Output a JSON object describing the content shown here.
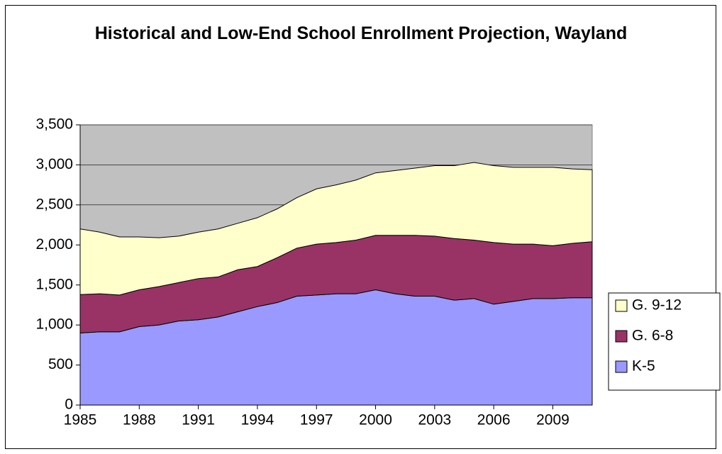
{
  "chart_data": {
    "type": "stacked_area",
    "title": "Historical and Low-End School Enrollment Projection, Wayland",
    "x": [
      1985,
      1986,
      1987,
      1988,
      1989,
      1990,
      1991,
      1992,
      1993,
      1994,
      1995,
      1996,
      1997,
      1998,
      1999,
      2000,
      2001,
      2002,
      2003,
      2004,
      2005,
      2006,
      2007,
      2008,
      2009,
      2010,
      2011
    ],
    "xlim": [
      1985,
      2011
    ],
    "xticks": [
      1985,
      1988,
      1991,
      1994,
      1997,
      2000,
      2003,
      2006,
      2009
    ],
    "ylim": [
      0,
      3500
    ],
    "yticks": [
      0,
      500,
      {
        "value": 1000,
        "label": "1,000"
      },
      {
        "value": 1500,
        "label": "1,500"
      },
      {
        "value": 2000,
        "label": "2,000"
      },
      {
        "value": 2500,
        "label": "2,500"
      },
      {
        "value": 3000,
        "label": "3,000"
      },
      {
        "value": 3500,
        "label": "3,500"
      }
    ],
    "grid": true,
    "legend": "right",
    "series": [
      {
        "name": "K-5",
        "color": "#9999ff",
        "values": [
          900,
          915,
          915,
          980,
          1000,
          1050,
          1065,
          1100,
          1165,
          1230,
          1280,
          1360,
          1375,
          1390,
          1390,
          1440,
          1390,
          1360,
          1360,
          1310,
          1330,
          1260,
          1295,
          1330,
          1330,
          1340,
          1340
        ]
      },
      {
        "name": "G. 6-8",
        "color": "#993366",
        "values": [
          480,
          475,
          460,
          460,
          480,
          480,
          515,
          500,
          525,
          500,
          560,
          600,
          635,
          640,
          670,
          680,
          730,
          760,
          750,
          770,
          730,
          770,
          715,
          680,
          660,
          680,
          700
        ]
      },
      {
        "name": "G. 9-12",
        "color": "#ffffcc",
        "values": [
          820,
          770,
          725,
          660,
          610,
          580,
          580,
          600,
          580,
          610,
          610,
          630,
          690,
          720,
          750,
          780,
          810,
          840,
          880,
          910,
          970,
          960,
          960,
          960,
          980,
          930,
          900
        ]
      }
    ]
  }
}
